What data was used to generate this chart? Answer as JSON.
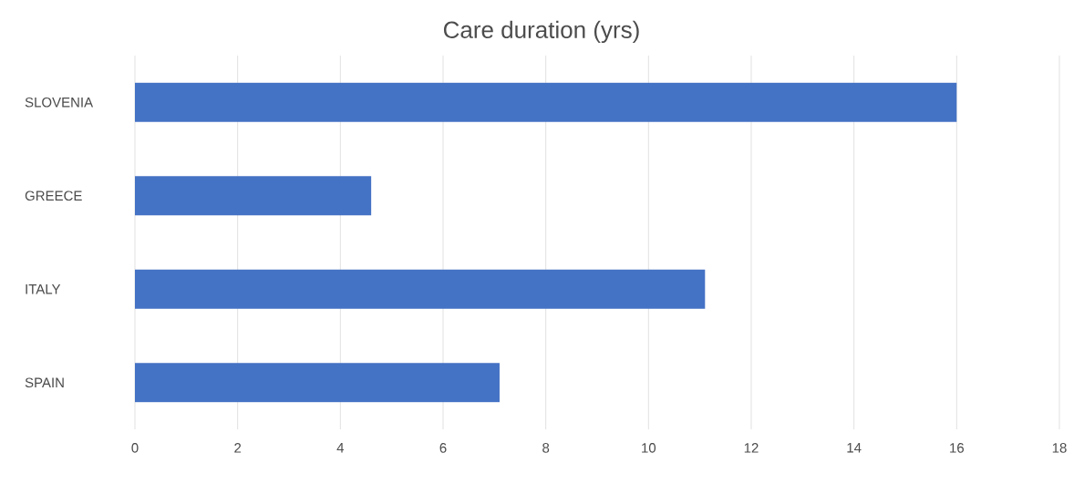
{
  "chart_data": {
    "type": "bar",
    "orientation": "horizontal",
    "title": "Care duration (yrs)",
    "categories": [
      "SLOVENIA",
      "GREECE",
      "ITALY",
      "SPAIN"
    ],
    "values": [
      16.0,
      4.6,
      11.1,
      7.1
    ],
    "color": "#4472c4",
    "xlim": [
      0,
      18
    ],
    "xticks": [
      0,
      2,
      4,
      6,
      8,
      10,
      12,
      14,
      16,
      18
    ],
    "grid": "x"
  }
}
